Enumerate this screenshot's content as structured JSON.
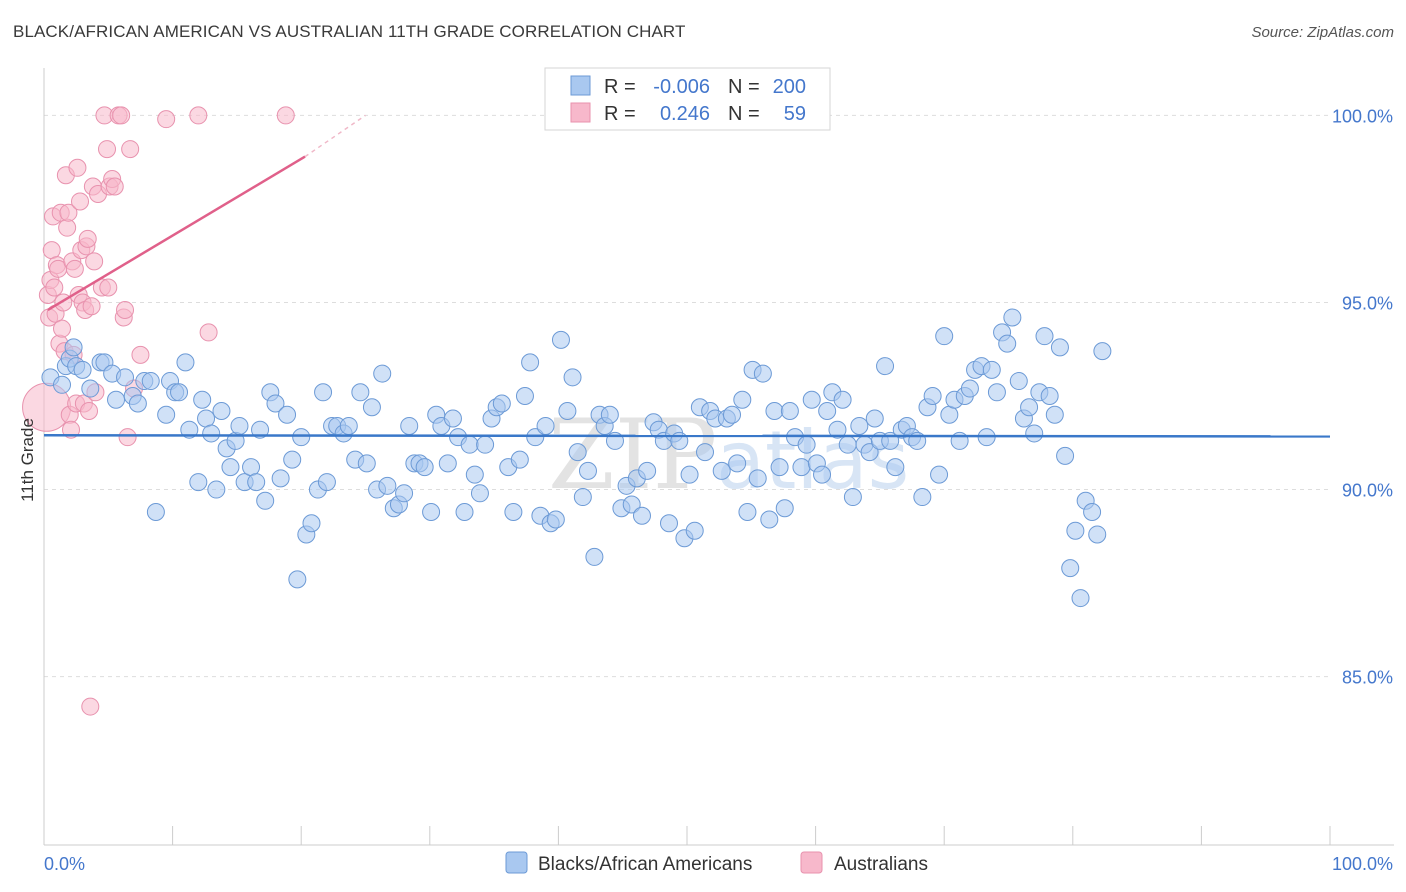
{
  "header": {
    "title": "BLACK/AFRICAN AMERICAN VS AUSTRALIAN 11TH GRADE CORRELATION CHART",
    "source": "Source: ZipAtlas.com"
  },
  "watermark": {
    "zip": "ZIP",
    "atlas": "atlas"
  },
  "colors": {
    "blue_fill": "#a9c8f0",
    "blue_stroke": "#6c9ad6",
    "blue_line": "#3a78c9",
    "pink_fill": "#f7b8cb",
    "pink_stroke": "#e892ae",
    "pink_line": "#e0608a",
    "text_blue": "#4477cc",
    "grid": "#dddddd"
  },
  "legend": {
    "rows": [
      {
        "r_label": "R =",
        "r_value": "-0.006",
        "n_label": "N =",
        "n_value": "200"
      },
      {
        "r_label": "R =",
        "r_value": "0.246",
        "n_label": "N =",
        "n_value": "59"
      }
    ]
  },
  "chart_data": {
    "type": "scatter",
    "title": "BLACK/AFRICAN AMERICAN VS AUSTRALIAN 11TH GRADE CORRELATION CHART",
    "ylabel": "11th Grade",
    "xlabel": "",
    "xlim": [
      0,
      100
    ],
    "ylim": [
      80.5,
      101.0
    ],
    "x_tick_labels": [
      "0.0%",
      "100.0%"
    ],
    "y_ticks": [
      85,
      90,
      95,
      100
    ],
    "y_tick_labels": [
      "85.0%",
      "90.0%",
      "95.0%",
      "100.0%"
    ],
    "grid": true,
    "legend_position": "top-center",
    "series": [
      {
        "name": "Blacks/African Americans",
        "color": "blue",
        "r": -0.006,
        "n": 200,
        "trend": {
          "x": [
            0,
            100
          ],
          "y": [
            91.45,
            91.42
          ]
        },
        "points": [
          [
            0.5,
            93.0
          ],
          [
            1.4,
            92.8
          ],
          [
            1.7,
            93.3
          ],
          [
            2.0,
            93.5
          ],
          [
            2.3,
            93.8
          ],
          [
            2.5,
            93.3
          ],
          [
            3.0,
            93.2
          ],
          [
            3.6,
            92.7
          ],
          [
            4.4,
            93.4
          ],
          [
            4.7,
            93.4
          ],
          [
            5.3,
            93.1
          ],
          [
            5.6,
            92.4
          ],
          [
            6.3,
            93.0
          ],
          [
            6.9,
            92.5
          ],
          [
            7.3,
            92.3
          ],
          [
            7.8,
            92.9
          ],
          [
            8.3,
            92.9
          ],
          [
            8.7,
            89.4
          ],
          [
            9.5,
            92.0
          ],
          [
            9.8,
            92.9
          ],
          [
            10.2,
            92.6
          ],
          [
            10.5,
            92.6
          ],
          [
            11.0,
            93.4
          ],
          [
            11.3,
            91.6
          ],
          [
            12.0,
            90.2
          ],
          [
            12.3,
            92.4
          ],
          [
            12.6,
            91.9
          ],
          [
            13.0,
            91.5
          ],
          [
            13.4,
            90.0
          ],
          [
            13.8,
            92.1
          ],
          [
            14.2,
            91.1
          ],
          [
            14.5,
            90.6
          ],
          [
            14.9,
            91.3
          ],
          [
            15.2,
            91.7
          ],
          [
            15.6,
            90.2
          ],
          [
            16.1,
            90.6
          ],
          [
            16.5,
            90.2
          ],
          [
            16.8,
            91.6
          ],
          [
            17.2,
            89.7
          ],
          [
            17.6,
            92.6
          ],
          [
            18.0,
            92.3
          ],
          [
            18.4,
            90.3
          ],
          [
            18.9,
            92.0
          ],
          [
            19.3,
            90.8
          ],
          [
            19.7,
            87.6
          ],
          [
            20.0,
            91.4
          ],
          [
            20.4,
            88.8
          ],
          [
            20.8,
            89.1
          ],
          [
            21.3,
            90.0
          ],
          [
            21.7,
            92.6
          ],
          [
            22.0,
            90.2
          ],
          [
            22.4,
            91.7
          ],
          [
            22.8,
            91.7
          ],
          [
            23.3,
            91.5
          ],
          [
            23.7,
            91.7
          ],
          [
            24.2,
            90.8
          ],
          [
            24.6,
            92.6
          ],
          [
            25.1,
            90.7
          ],
          [
            25.5,
            92.2
          ],
          [
            25.9,
            90.0
          ],
          [
            26.3,
            93.1
          ],
          [
            26.7,
            90.1
          ],
          [
            27.2,
            89.5
          ],
          [
            27.6,
            89.6
          ],
          [
            28.0,
            89.9
          ],
          [
            28.4,
            91.7
          ],
          [
            28.8,
            90.7
          ],
          [
            29.2,
            90.7
          ],
          [
            29.6,
            90.6
          ],
          [
            30.1,
            89.4
          ],
          [
            30.5,
            92.0
          ],
          [
            30.9,
            91.7
          ],
          [
            31.4,
            90.7
          ],
          [
            31.8,
            91.9
          ],
          [
            32.2,
            91.4
          ],
          [
            32.7,
            89.4
          ],
          [
            33.1,
            91.2
          ],
          [
            33.5,
            90.4
          ],
          [
            33.9,
            89.9
          ],
          [
            34.3,
            91.2
          ],
          [
            34.8,
            91.9
          ],
          [
            35.2,
            92.2
          ],
          [
            35.6,
            92.3
          ],
          [
            36.1,
            90.6
          ],
          [
            36.5,
            89.4
          ],
          [
            37.0,
            90.8
          ],
          [
            37.4,
            92.5
          ],
          [
            37.8,
            93.4
          ],
          [
            38.2,
            91.4
          ],
          [
            38.6,
            89.3
          ],
          [
            39.0,
            91.7
          ],
          [
            39.4,
            89.1
          ],
          [
            39.8,
            89.2
          ],
          [
            40.2,
            94.0
          ],
          [
            40.7,
            92.1
          ],
          [
            41.1,
            93.0
          ],
          [
            41.5,
            91.0
          ],
          [
            41.9,
            89.8
          ],
          [
            42.3,
            90.5
          ],
          [
            42.8,
            88.2
          ],
          [
            43.2,
            92.0
          ],
          [
            43.6,
            91.7
          ],
          [
            44.0,
            92.0
          ],
          [
            44.4,
            91.3
          ],
          [
            44.9,
            89.5
          ],
          [
            45.3,
            90.1
          ],
          [
            45.7,
            89.6
          ],
          [
            46.1,
            90.3
          ],
          [
            46.5,
            89.3
          ],
          [
            46.9,
            90.5
          ],
          [
            47.4,
            91.8
          ],
          [
            47.8,
            91.6
          ],
          [
            48.2,
            91.3
          ],
          [
            48.6,
            89.1
          ],
          [
            49.0,
            91.5
          ],
          [
            49.4,
            91.3
          ],
          [
            49.8,
            88.7
          ],
          [
            50.2,
            90.4
          ],
          [
            50.6,
            88.9
          ],
          [
            51.0,
            92.2
          ],
          [
            51.4,
            91.0
          ],
          [
            51.8,
            92.1
          ],
          [
            52.2,
            91.9
          ],
          [
            52.7,
            90.5
          ],
          [
            53.1,
            91.9
          ],
          [
            53.5,
            92.0
          ],
          [
            53.9,
            90.7
          ],
          [
            54.3,
            92.4
          ],
          [
            54.7,
            89.4
          ],
          [
            55.1,
            93.2
          ],
          [
            55.5,
            90.3
          ],
          [
            55.9,
            93.1
          ],
          [
            56.4,
            89.2
          ],
          [
            56.8,
            92.1
          ],
          [
            57.2,
            90.6
          ],
          [
            57.6,
            89.5
          ],
          [
            58.0,
            92.1
          ],
          [
            58.4,
            91.4
          ],
          [
            58.9,
            90.6
          ],
          [
            59.3,
            91.2
          ],
          [
            59.7,
            92.4
          ],
          [
            60.1,
            90.7
          ],
          [
            60.5,
            90.4
          ],
          [
            60.9,
            92.1
          ],
          [
            61.3,
            92.6
          ],
          [
            61.7,
            91.6
          ],
          [
            62.1,
            92.4
          ],
          [
            62.5,
            91.2
          ],
          [
            62.9,
            89.8
          ],
          [
            63.4,
            91.7
          ],
          [
            63.8,
            91.2
          ],
          [
            64.2,
            91.0
          ],
          [
            64.6,
            91.9
          ],
          [
            65.0,
            91.3
          ],
          [
            65.4,
            93.3
          ],
          [
            65.8,
            91.3
          ],
          [
            66.2,
            90.6
          ],
          [
            66.7,
            91.6
          ],
          [
            67.1,
            91.7
          ],
          [
            67.5,
            91.4
          ],
          [
            67.9,
            91.3
          ],
          [
            68.3,
            89.8
          ],
          [
            68.7,
            92.2
          ],
          [
            69.1,
            92.5
          ],
          [
            69.6,
            90.4
          ],
          [
            70.0,
            94.1
          ],
          [
            70.4,
            92.0
          ],
          [
            70.8,
            92.4
          ],
          [
            71.2,
            91.3
          ],
          [
            71.6,
            92.5
          ],
          [
            72.0,
            92.7
          ],
          [
            72.4,
            93.2
          ],
          [
            72.9,
            93.3
          ],
          [
            73.3,
            91.4
          ],
          [
            73.7,
            93.2
          ],
          [
            74.1,
            92.6
          ],
          [
            74.5,
            94.2
          ],
          [
            74.9,
            93.9
          ],
          [
            75.3,
            94.6
          ],
          [
            75.8,
            92.9
          ],
          [
            76.2,
            91.9
          ],
          [
            76.6,
            92.2
          ],
          [
            77.0,
            91.5
          ],
          [
            77.4,
            92.6
          ],
          [
            77.8,
            94.1
          ],
          [
            78.2,
            92.5
          ],
          [
            78.6,
            92.0
          ],
          [
            79.0,
            93.8
          ],
          [
            79.4,
            90.9
          ],
          [
            79.8,
            87.9
          ],
          [
            80.2,
            88.9
          ],
          [
            80.6,
            87.1
          ],
          [
            81.0,
            89.7
          ],
          [
            81.5,
            89.4
          ],
          [
            81.9,
            88.8
          ],
          [
            82.3,
            93.7
          ]
        ]
      },
      {
        "name": "Australians",
        "color": "pink",
        "r": 0.246,
        "n": 59,
        "trend": {
          "x": [
            0.3,
            20.3
          ],
          "y": [
            94.8,
            98.9
          ]
        },
        "trend_dashed": {
          "x": [
            20.3,
            25.0
          ],
          "y": [
            98.9,
            100.0
          ]
        },
        "points": [
          [
            0.2,
            92.2
          ],
          [
            0.3,
            95.2
          ],
          [
            0.4,
            94.6
          ],
          [
            0.5,
            95.6
          ],
          [
            0.6,
            96.4
          ],
          [
            0.7,
            97.3
          ],
          [
            0.8,
            95.4
          ],
          [
            0.9,
            94.7
          ],
          [
            1.0,
            96.0
          ],
          [
            1.1,
            95.9
          ],
          [
            1.2,
            93.9
          ],
          [
            1.3,
            97.4
          ],
          [
            1.4,
            94.3
          ],
          [
            1.5,
            95.0
          ],
          [
            1.6,
            93.7
          ],
          [
            1.7,
            98.4
          ],
          [
            1.8,
            97.0
          ],
          [
            1.9,
            97.4
          ],
          [
            2.0,
            92.0
          ],
          [
            2.1,
            91.6
          ],
          [
            2.2,
            96.1
          ],
          [
            2.3,
            93.6
          ],
          [
            2.4,
            95.9
          ],
          [
            2.5,
            92.3
          ],
          [
            2.6,
            98.6
          ],
          [
            2.7,
            95.2
          ],
          [
            2.8,
            97.7
          ],
          [
            2.9,
            96.4
          ],
          [
            3.0,
            95.0
          ],
          [
            3.1,
            92.3
          ],
          [
            3.2,
            94.8
          ],
          [
            3.3,
            96.5
          ],
          [
            3.4,
            96.7
          ],
          [
            3.5,
            92.1
          ],
          [
            3.6,
            84.2
          ],
          [
            3.7,
            94.9
          ],
          [
            3.8,
            98.1
          ],
          [
            3.9,
            96.1
          ],
          [
            4.0,
            92.6
          ],
          [
            4.2,
            97.9
          ],
          [
            4.5,
            95.4
          ],
          [
            4.7,
            100.0
          ],
          [
            4.9,
            99.1
          ],
          [
            5.0,
            95.4
          ],
          [
            5.1,
            98.1
          ],
          [
            5.3,
            98.3
          ],
          [
            5.5,
            98.1
          ],
          [
            5.8,
            100.0
          ],
          [
            6.0,
            100.0
          ],
          [
            6.2,
            94.6
          ],
          [
            6.3,
            94.8
          ],
          [
            6.5,
            91.4
          ],
          [
            6.7,
            99.1
          ],
          [
            7.0,
            92.7
          ],
          [
            7.5,
            93.6
          ],
          [
            9.5,
            99.9
          ],
          [
            12.0,
            100.0
          ],
          [
            12.8,
            94.2
          ],
          [
            18.8,
            100.0
          ]
        ]
      }
    ]
  },
  "bottom_legend": [
    {
      "label": "Blacks/African Americans",
      "color": "blue"
    },
    {
      "label": "Australians",
      "color": "pink"
    }
  ]
}
